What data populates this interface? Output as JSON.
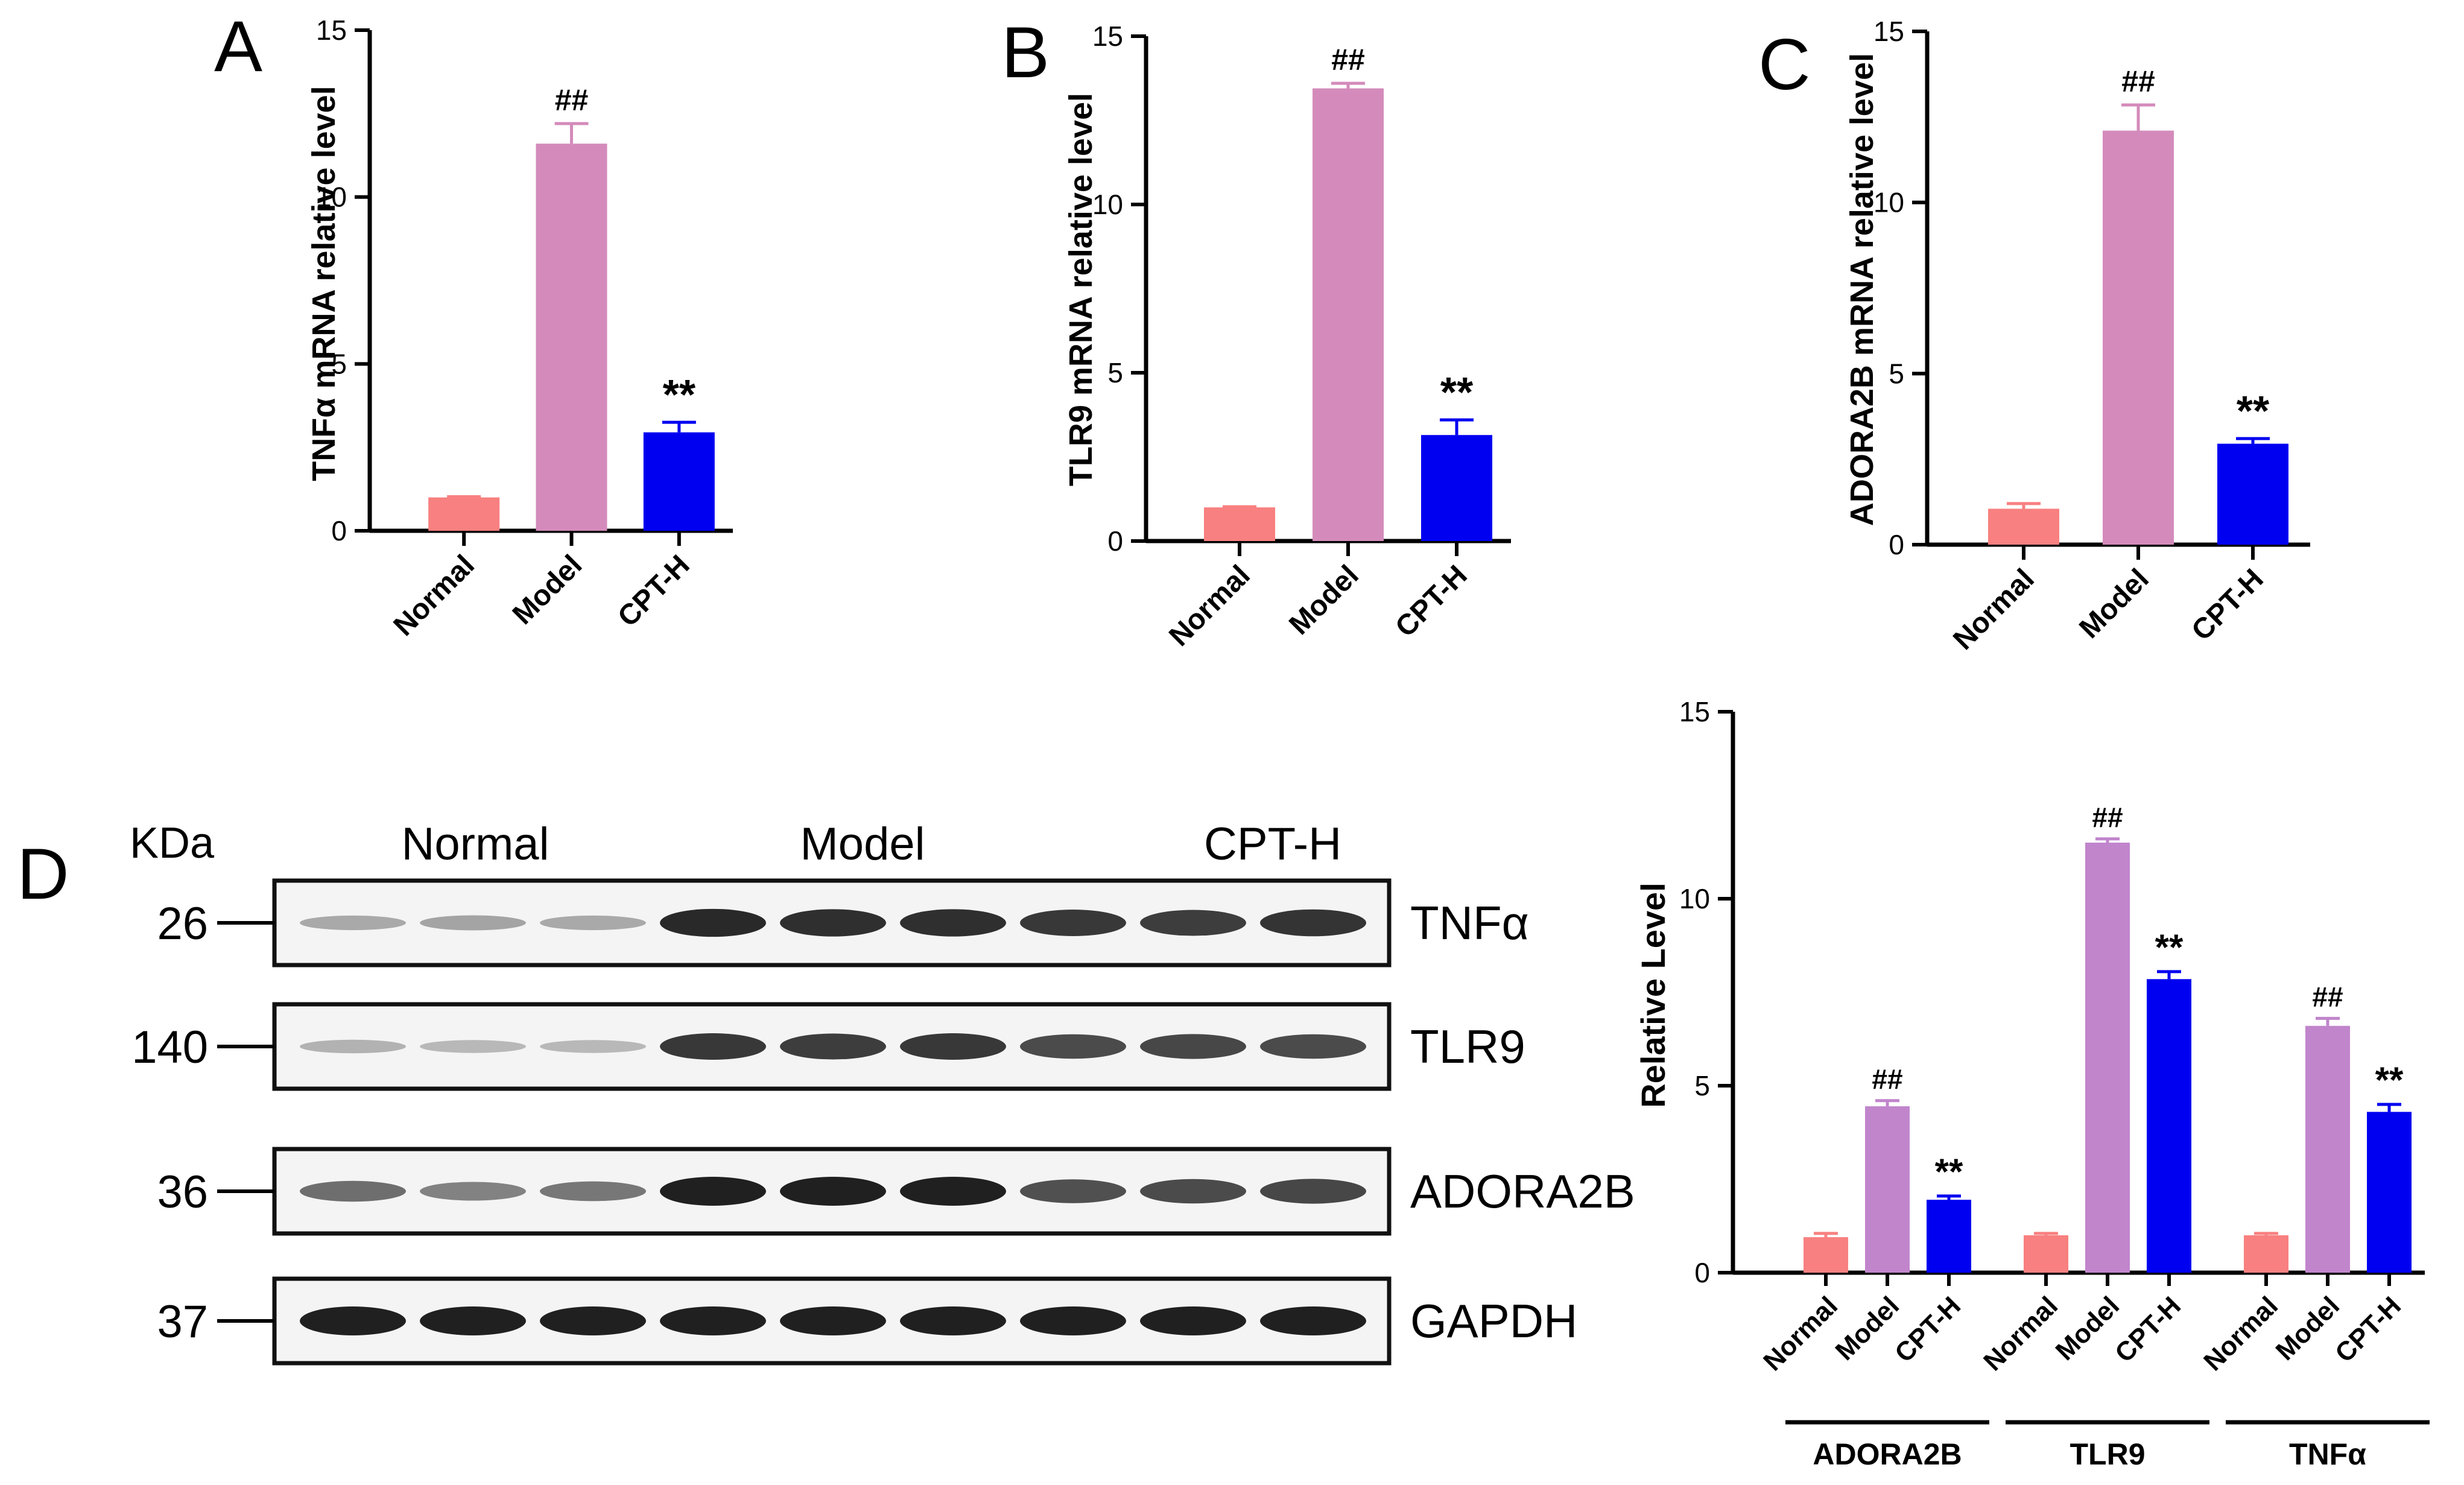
{
  "panel_letters": [
    "A",
    "B",
    "C",
    "D"
  ],
  "chart_data": [
    {
      "panel": "A",
      "type": "bar",
      "categories": [
        "Normal",
        "Model",
        "CPT-H"
      ],
      "values": [
        1.0,
        11.6,
        2.95
      ],
      "errors": [
        0.02,
        0.6,
        0.3
      ],
      "annotations": [
        "",
        "##",
        "**"
      ],
      "ylabel": "TNFα mRNA relative level",
      "ylim": [
        0,
        15
      ],
      "yticks": [
        0,
        5,
        10,
        15
      ],
      "colors": [
        "#F88080",
        "#D48BBB",
        "#0000F0"
      ]
    },
    {
      "panel": "B",
      "type": "bar",
      "categories": [
        "Normal",
        "Model",
        "CPT-H"
      ],
      "values": [
        1.0,
        13.45,
        3.15
      ],
      "errors": [
        0.02,
        0.15,
        0.45
      ],
      "annotations": [
        "",
        "##",
        "**"
      ],
      "ylabel": "TLR9 mRNA relative level",
      "ylim": [
        0,
        15
      ],
      "yticks": [
        0,
        5,
        10,
        15
      ],
      "colors": [
        "#F88080",
        "#D48BBB",
        "#0000F0"
      ]
    },
    {
      "panel": "C",
      "type": "bar",
      "categories": [
        "Normal",
        "Model",
        "CPT-H"
      ],
      "values": [
        1.05,
        12.1,
        2.95
      ],
      "errors": [
        0.15,
        0.75,
        0.15
      ],
      "annotations": [
        "",
        "##",
        "**"
      ],
      "ylabel": "ADORA2B mRNA relative level",
      "ylim": [
        0,
        15
      ],
      "yticks": [
        0,
        5,
        10,
        15
      ],
      "colors": [
        "#F88080",
        "#D48BBB",
        "#0000F0"
      ]
    },
    {
      "panel": "D",
      "type": "bar",
      "ylabel": "Relative Level",
      "ylim": [
        0,
        15
      ],
      "yticks": [
        0,
        5,
        10,
        15
      ],
      "groups": [
        {
          "name": "ADORA2B",
          "categories": [
            "Normal",
            "Model",
            "CPT-H"
          ],
          "values": [
            0.95,
            4.45,
            1.95
          ],
          "errors": [
            0.1,
            0.15,
            0.1
          ],
          "annotations": [
            "",
            "##",
            "**"
          ]
        },
        {
          "name": "TLR9",
          "categories": [
            "Normal",
            "Model",
            "CPT-H"
          ],
          "values": [
            1.0,
            11.5,
            7.85
          ],
          "errors": [
            0.05,
            0.1,
            0.2
          ],
          "annotations": [
            "",
            "##",
            "**"
          ]
        },
        {
          "name": "TNFα",
          "categories": [
            "Normal",
            "Model",
            "CPT-H"
          ],
          "values": [
            1.0,
            6.6,
            4.3
          ],
          "errors": [
            0.05,
            0.2,
            0.2
          ],
          "annotations": [
            "",
            "##",
            "**"
          ]
        }
      ],
      "colors": [
        "#F88080",
        "#C185CC",
        "#0000F0"
      ]
    }
  ],
  "blot": {
    "kda_label": "KDa",
    "group_labels": [
      "Normal",
      "Model",
      "CPT-H"
    ],
    "rows": [
      {
        "marker": "26",
        "protein": "TNFα",
        "intensity": [
          0.3,
          0.32,
          0.3,
          0.95,
          0.92,
          0.92,
          0.88,
          0.85,
          0.9
        ]
      },
      {
        "marker": "140",
        "protein": "TLR9",
        "intensity": [
          0.25,
          0.22,
          0.22,
          0.88,
          0.85,
          0.88,
          0.78,
          0.8,
          0.78
        ]
      },
      {
        "marker": "36",
        "protein": "ADORA2B",
        "intensity": [
          0.6,
          0.5,
          0.55,
          1.0,
          1.0,
          1.0,
          0.75,
          0.78,
          0.8
        ]
      },
      {
        "marker": "37",
        "protein": "GAPDH",
        "intensity": [
          1.0,
          1.0,
          1.0,
          1.0,
          1.0,
          1.0,
          1.0,
          1.0,
          1.0
        ]
      }
    ]
  }
}
